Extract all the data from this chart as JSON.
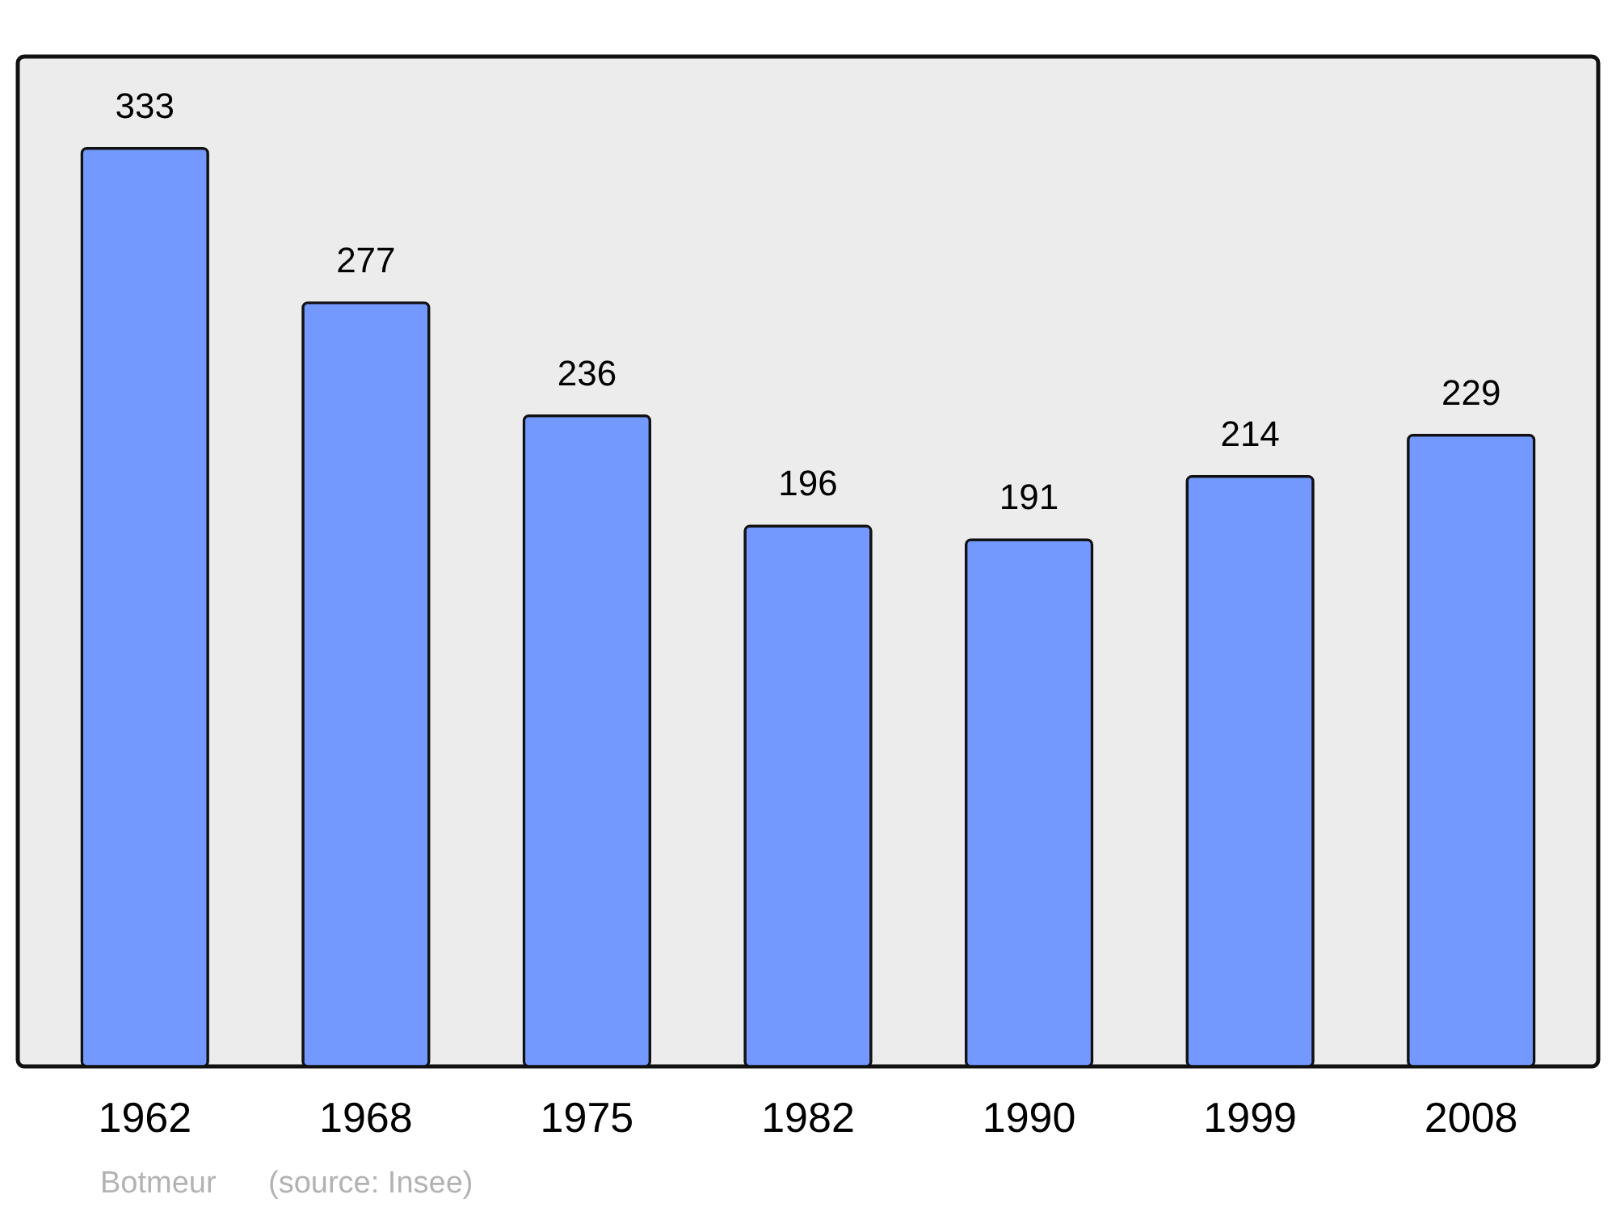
{
  "chart_data": {
    "type": "bar",
    "categories": [
      "1962",
      "1968",
      "1975",
      "1982",
      "1990",
      "1999",
      "2008"
    ],
    "values": [
      333,
      277,
      236,
      196,
      191,
      214,
      229
    ],
    "color": "#7399ff",
    "data_labels": true,
    "annotations": [
      "Botmeur",
      "(source: Insee)"
    ]
  }
}
